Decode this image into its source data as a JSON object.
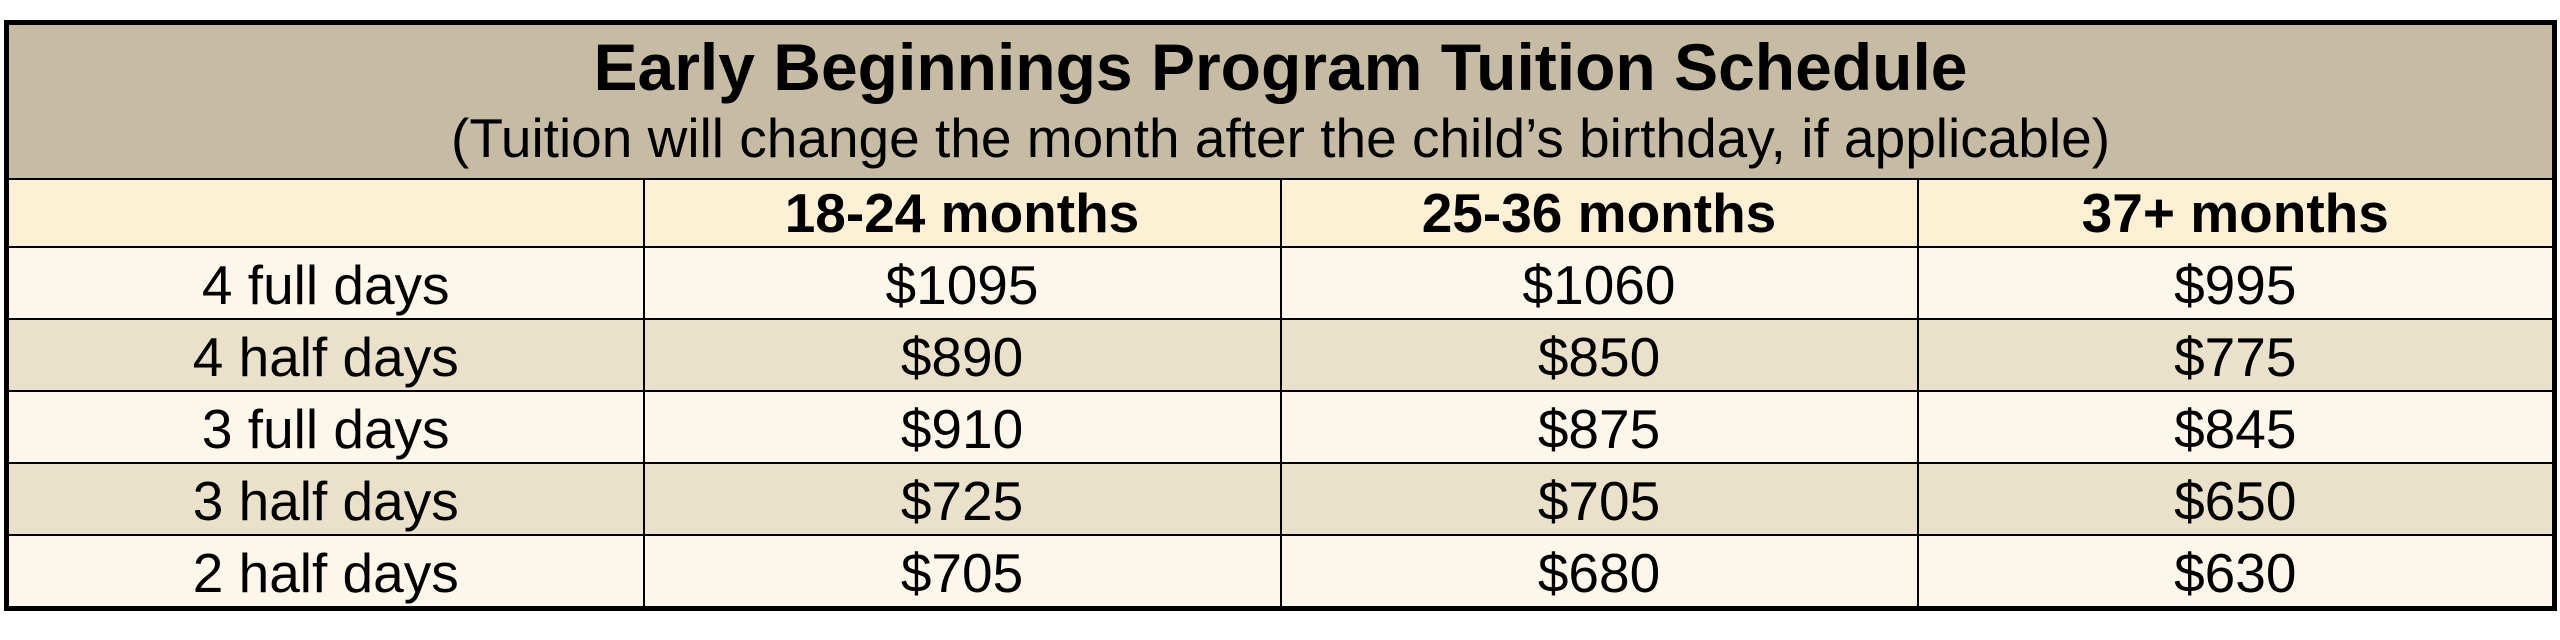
{
  "title": "Early Beginnings Program Tuition Schedule",
  "subtitle": "(Tuition will change the month after the child’s birthday, if applicable)",
  "columns": [
    "",
    "18-24 months",
    "25-36 months",
    "37+ months"
  ],
  "rows": [
    {
      "label": "4 full days",
      "values": [
        "$1095",
        "$1060",
        "$995"
      ]
    },
    {
      "label": "4 half days",
      "values": [
        "$890",
        "$850",
        "$775"
      ]
    },
    {
      "label": "3 full days",
      "values": [
        "$910",
        "$875",
        "$845"
      ]
    },
    {
      "label": "3 half days",
      "values": [
        "$725",
        "$705",
        "$650"
      ]
    },
    {
      "label": "2 half days",
      "values": [
        "$705",
        "$680",
        "$630"
      ]
    }
  ],
  "colors": {
    "title_band": "#c5bca3",
    "header_row": "#fdf1d5",
    "row_light": "#fdf7eb",
    "row_dark": "#e9e1ca",
    "border": "#000000"
  }
}
